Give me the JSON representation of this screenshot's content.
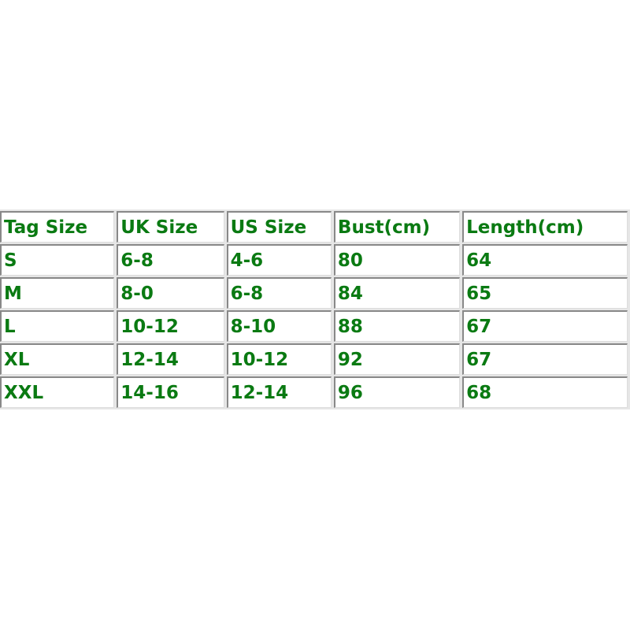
{
  "table": {
    "headers": [
      "Tag Size",
      "UK Size",
      "US Size",
      "Bust(cm)",
      "Length(cm)"
    ],
    "rows": [
      [
        "S",
        "6-8",
        "4-6",
        "80",
        "64"
      ],
      [
        "M",
        "8-0",
        "6-8",
        "84",
        "65"
      ],
      [
        "L",
        "10-12",
        "8-10",
        "88",
        "67"
      ],
      [
        "XL",
        "12-14",
        "10-12",
        "92",
        "67"
      ],
      [
        "XXL",
        "14-16",
        "12-14",
        "96",
        "68"
      ]
    ]
  },
  "colors": {
    "text": "#0a7a12",
    "border": "#888888"
  }
}
